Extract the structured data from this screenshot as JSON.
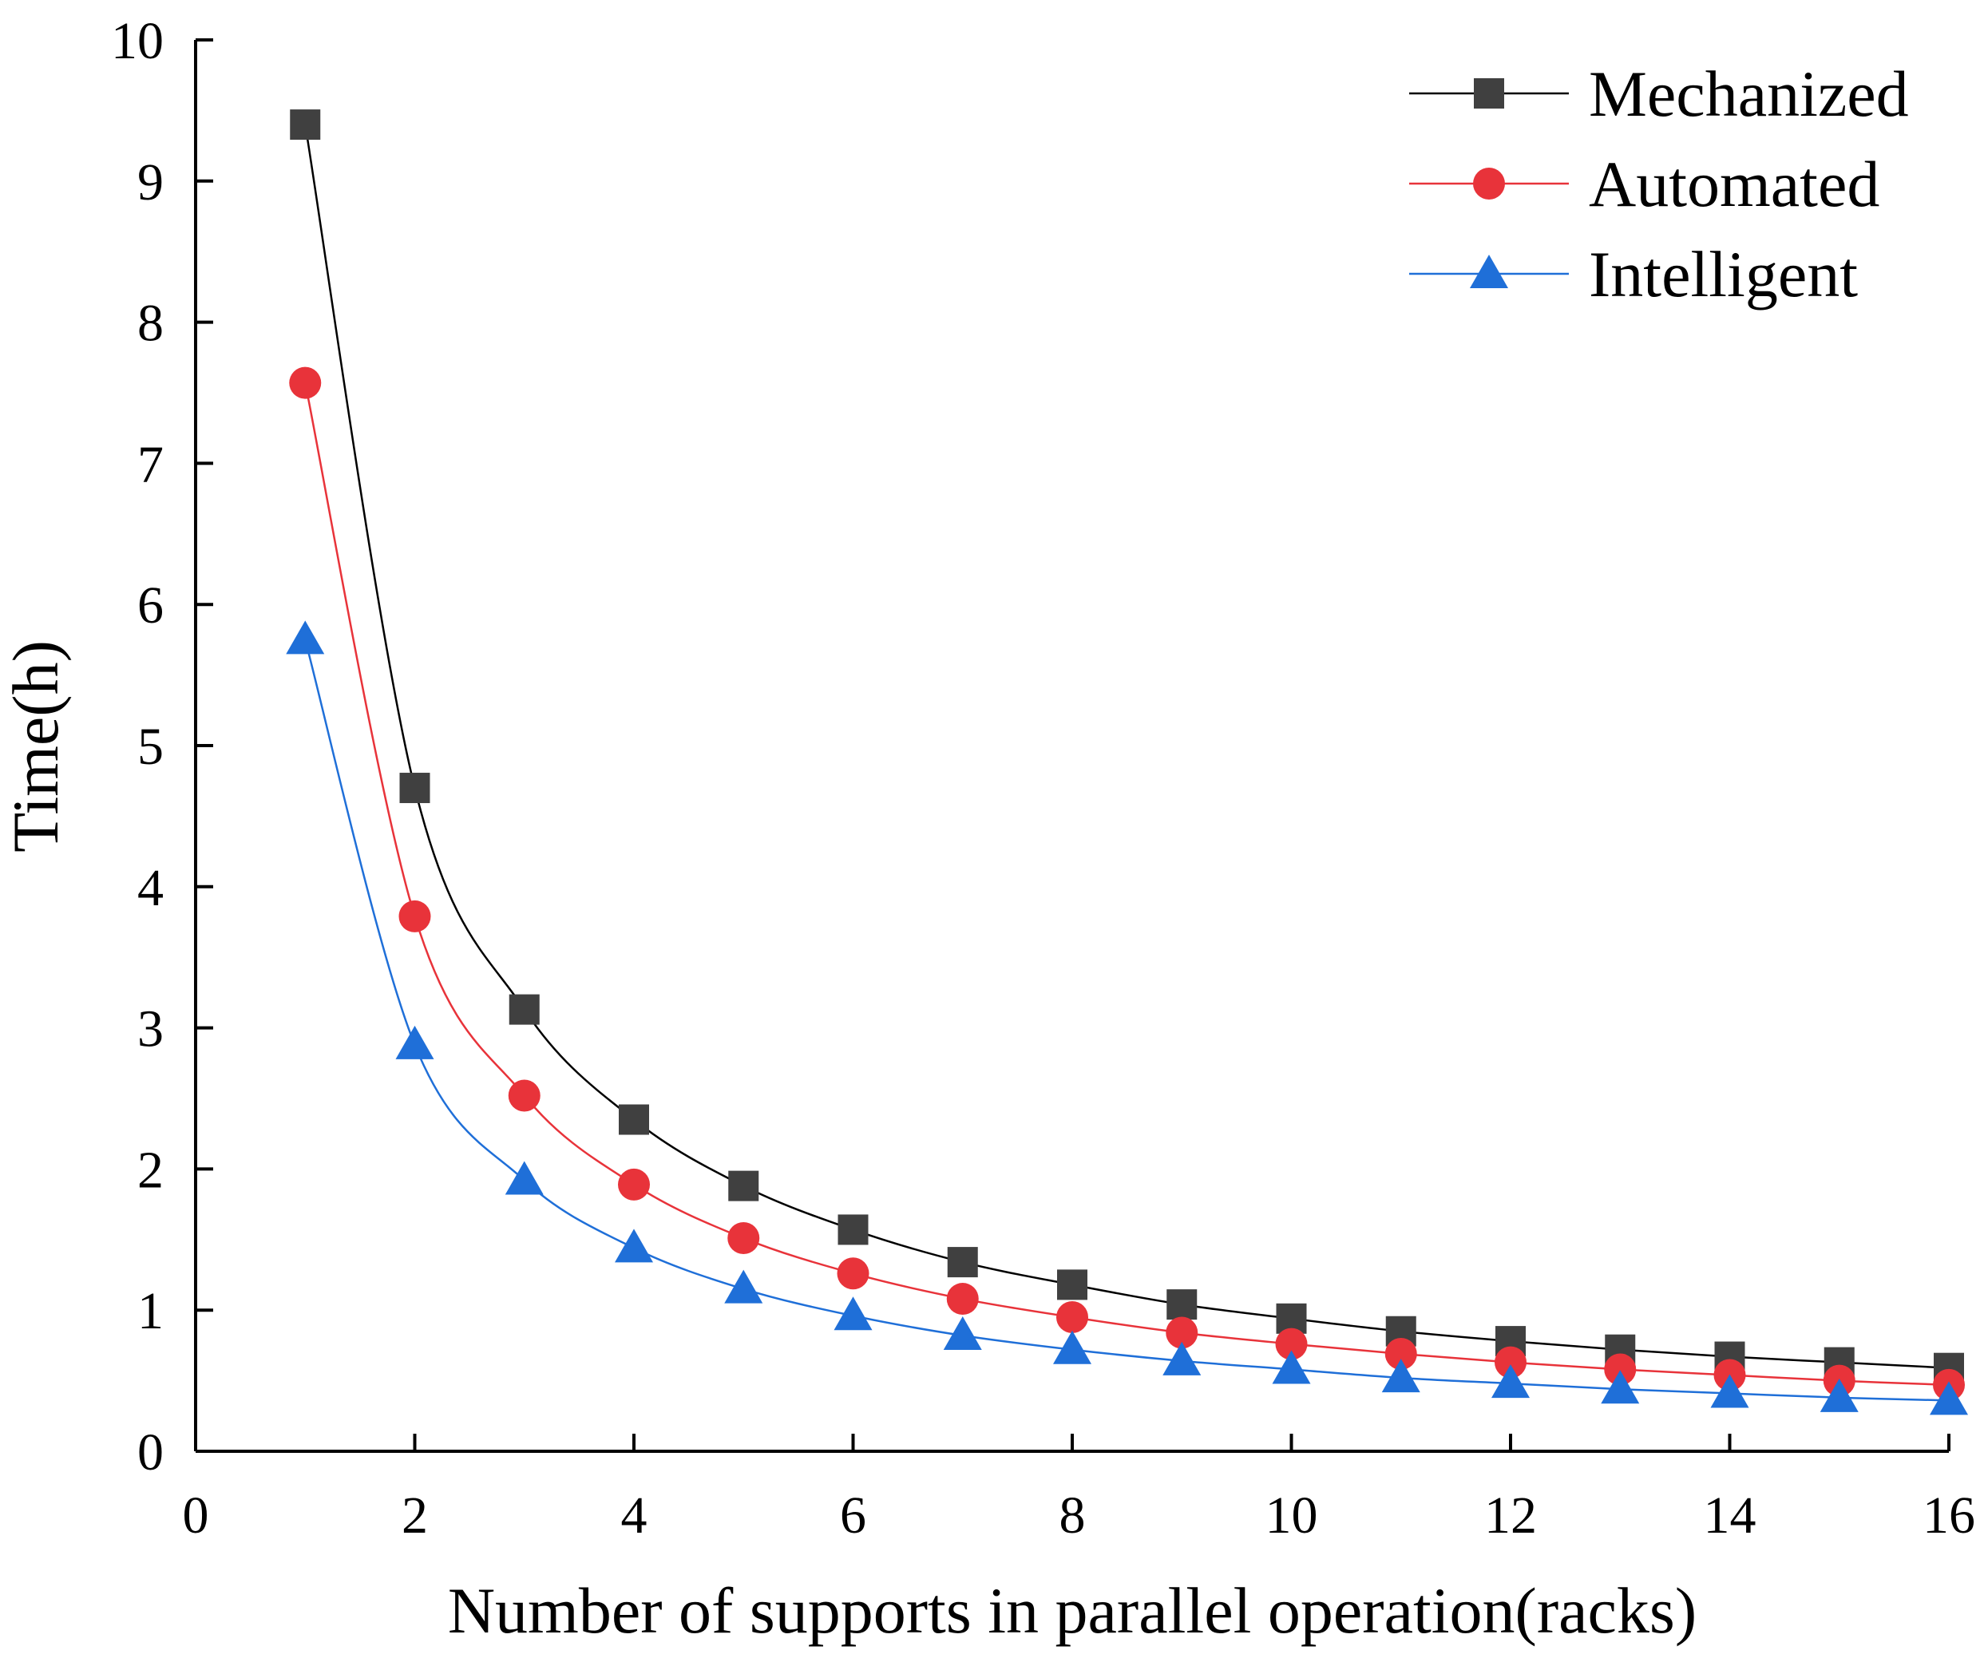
{
  "chart_data": {
    "type": "line",
    "title": "",
    "xlabel": "Number of supports in parallel operation(racks)",
    "ylabel": "Time(h)",
    "xlim": [
      0,
      16
    ],
    "ylim": [
      0,
      10
    ],
    "xticks": [
      0,
      2,
      4,
      6,
      8,
      10,
      12,
      14,
      16
    ],
    "yticks": [
      0,
      1,
      2,
      3,
      4,
      5,
      6,
      7,
      8,
      9,
      10
    ],
    "x_tick_labels": [
      "0",
      "2",
      "4",
      "6",
      "8",
      "10",
      "12",
      "14",
      "16"
    ],
    "y_tick_labels": [
      "0",
      "1",
      "2",
      "3",
      "4",
      "5",
      "6",
      "7",
      "8",
      "9",
      "10"
    ],
    "grid": false,
    "legend_position": "top-right",
    "x": [
      1,
      2,
      3,
      4,
      5,
      6,
      7,
      8,
      9,
      10,
      11,
      12,
      13,
      14,
      15,
      16
    ],
    "series": [
      {
        "name": "Mechanized",
        "marker": "square",
        "color": "#404040",
        "line_color": "#000000",
        "values": [
          9.4,
          4.7,
          3.13,
          2.35,
          1.88,
          1.57,
          1.34,
          1.18,
          1.04,
          0.94,
          0.85,
          0.78,
          0.72,
          0.67,
          0.63,
          0.59
        ]
      },
      {
        "name": "Automated",
        "marker": "circle",
        "color": "#e8333a",
        "line_color": "#e8333a",
        "values": [
          7.57,
          3.79,
          2.52,
          1.89,
          1.51,
          1.26,
          1.08,
          0.95,
          0.84,
          0.76,
          0.69,
          0.63,
          0.58,
          0.54,
          0.5,
          0.47
        ]
      },
      {
        "name": "Intelligent",
        "marker": "triangle",
        "color": "#1f6fd8",
        "line_color": "#1f6fd8",
        "values": [
          5.75,
          2.88,
          1.92,
          1.44,
          1.15,
          0.96,
          0.82,
          0.72,
          0.64,
          0.58,
          0.52,
          0.48,
          0.44,
          0.41,
          0.38,
          0.36
        ]
      }
    ]
  }
}
